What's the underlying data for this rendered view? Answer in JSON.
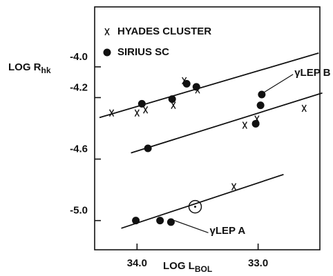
{
  "chart_data": {
    "type": "scatter",
    "x_label": {
      "main": "LOG L",
      "sub": "BOL"
    },
    "y_label": {
      "main": "LOG R",
      "sub": "hk"
    },
    "xlim": [
      34.35,
      32.49
    ],
    "ylim": [
      -5.19,
      -3.61
    ],
    "xticks": [
      {
        "value": 34,
        "label": "34.0"
      },
      {
        "value": 33,
        "label": "33.0"
      }
    ],
    "yticks": [
      {
        "value": -4,
        "label": "-4.0"
      },
      {
        "value": -4.2,
        "label": "-4.2"
      },
      {
        "value": -4.6,
        "label": "-4.6"
      },
      {
        "value": -5,
        "label": "-5.0"
      }
    ],
    "series": [
      {
        "name": "HYADES CLUSTER",
        "marker": "x",
        "color": "#111",
        "x": [
          34.21,
          34.0,
          33.93,
          33.7,
          33.61,
          33.5,
          33.11,
          33.01,
          32.62,
          33.2
        ],
        "values": [
          -4.3,
          -4.3,
          -4.28,
          -4.25,
          -4.09,
          -4.15,
          -4.38,
          -4.34,
          -4.27,
          -4.78
        ]
      },
      {
        "name": "SIRIUS SC",
        "marker": "dot",
        "color": "#111",
        "x": [
          33.96,
          33.71,
          33.59,
          33.51,
          32.97,
          32.98,
          33.02,
          33.91,
          34.01,
          33.81,
          33.72
        ],
        "values": [
          -4.24,
          -4.21,
          -4.11,
          -4.13,
          -4.18,
          -4.25,
          -4.37,
          -4.53,
          -5.0,
          -5.0,
          -5.01
        ]
      },
      {
        "marker": "circled-dot",
        "color": "#111",
        "x": [
          33.52
        ],
        "values": [
          -4.91
        ]
      }
    ],
    "fit_lines": [
      {
        "x": [
          34.31,
          32.5
        ],
        "values": [
          -4.33,
          -3.91
        ]
      },
      {
        "x": [
          34.05,
          32.47
        ],
        "values": [
          -4.56,
          -4.17
        ]
      },
      {
        "x": [
          34.13,
          32.79
        ],
        "values": [
          -5.05,
          -4.7
        ]
      }
    ],
    "annotations": [
      {
        "text": "γLEP B",
        "x": 32.7,
        "y": -4.04,
        "point_x": 32.97,
        "point_y": -4.18
      },
      {
        "text": "γLEP A",
        "x": 33.4,
        "y": -5.07,
        "point_x": 33.72,
        "point_y": -5.01
      }
    ]
  }
}
